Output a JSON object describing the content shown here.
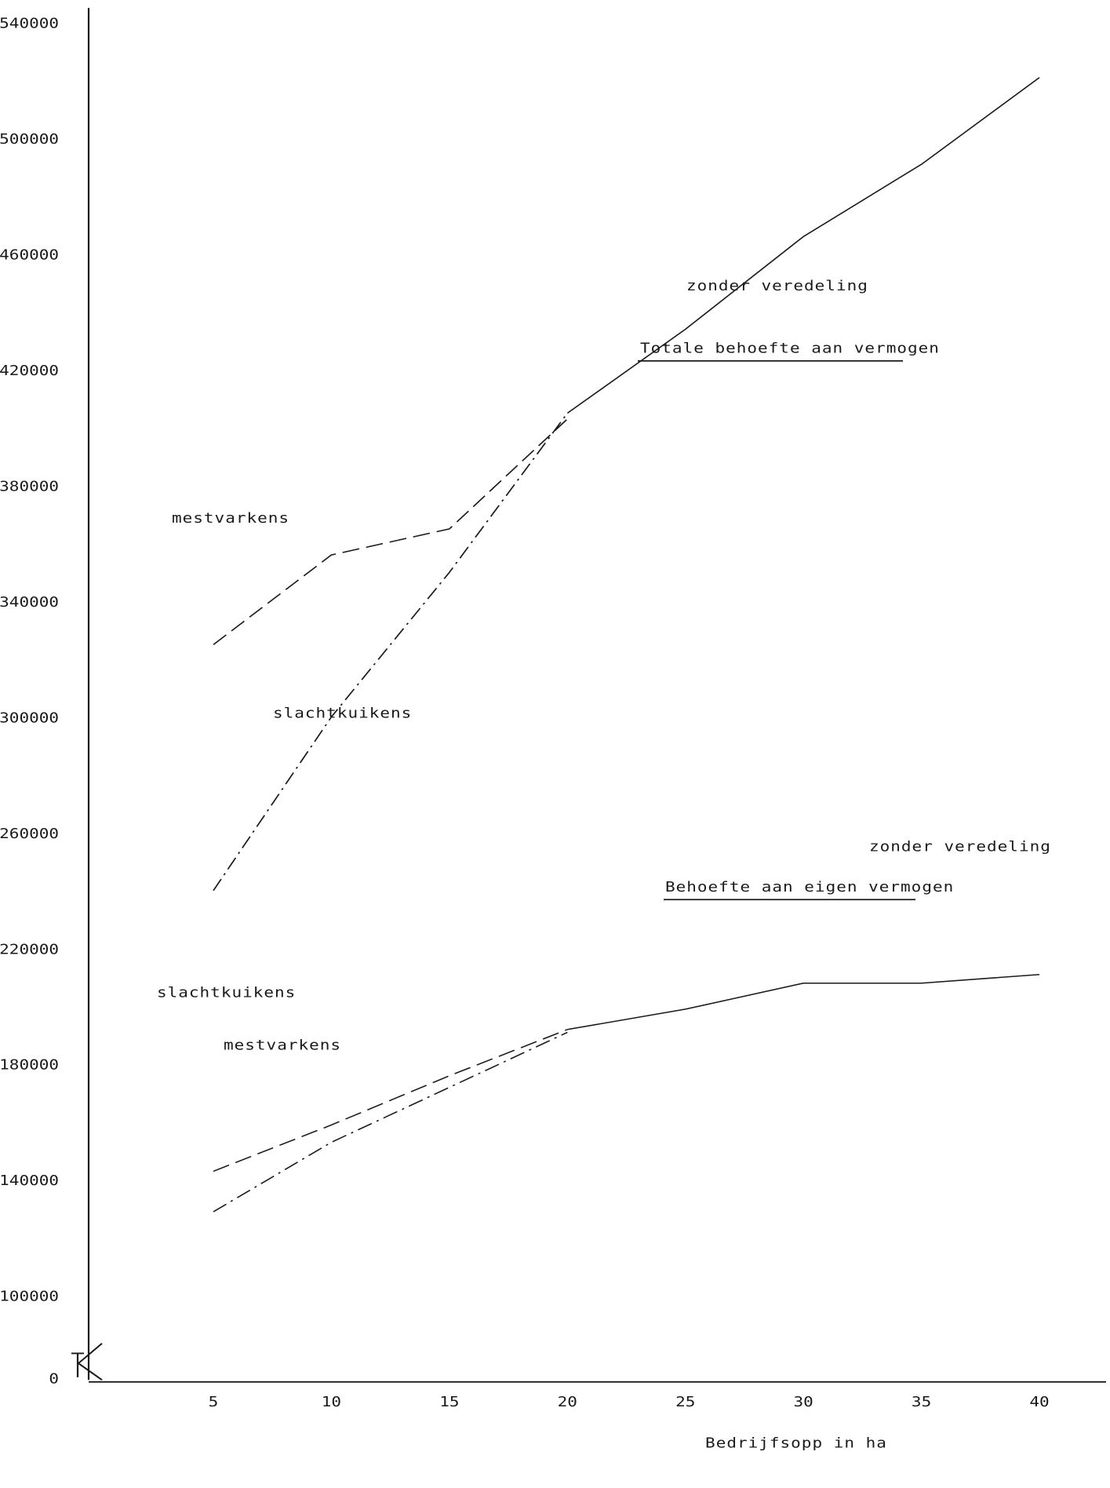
{
  "chart_data": {
    "type": "line",
    "title": "",
    "xlabel": "Bedrijfsopp in ha",
    "ylabel": "",
    "x_ticks": [
      "5",
      "10",
      "15",
      "20",
      "25",
      "30",
      "35",
      "40"
    ],
    "y_ticks": [
      "0",
      "100000",
      "140000",
      "180000",
      "220000",
      "260000",
      "300000",
      "340000",
      "380000",
      "420000",
      "460000",
      "500000",
      "540000"
    ],
    "xlim": [
      0,
      42
    ],
    "ylim": [
      100000,
      545000
    ],
    "y_axis_break": "between 0 and 100000",
    "grid": false,
    "legend": "none",
    "series": [
      {
        "group": "Totale behoefte aan vermogen",
        "name": "zonder veredeling",
        "style": "solid",
        "x": [
          20,
          25,
          30,
          35,
          40
        ],
        "y": [
          405000,
          434000,
          466000,
          491000,
          521000
        ]
      },
      {
        "group": "Totale behoefte aan vermogen",
        "name": "mestvarkens",
        "style": "dashed",
        "x": [
          5,
          10,
          15,
          20
        ],
        "y": [
          325000,
          356000,
          365000,
          403000
        ]
      },
      {
        "group": "Totale behoefte aan vermogen",
        "name": "slachtkuikens",
        "style": "dashdot",
        "x": [
          5,
          10,
          15,
          20
        ],
        "y": [
          240000,
          300000,
          350000,
          405000
        ]
      },
      {
        "group": "Behoefte aan eigen vermogen",
        "name": "zonder veredeling",
        "style": "solid",
        "x": [
          20,
          25,
          30,
          35,
          40
        ],
        "y": [
          192000,
          199000,
          208000,
          208000,
          211000
        ]
      },
      {
        "group": "Behoefte aan eigen vermogen",
        "name": "slachtkuikens",
        "style": "dashed",
        "x": [
          5,
          10,
          15,
          20
        ],
        "y": [
          143000,
          159000,
          176000,
          192000
        ]
      },
      {
        "group": "Behoefte aan eigen vermogen",
        "name": "mestvarkens",
        "style": "dashdot",
        "x": [
          5,
          10,
          15,
          20
        ],
        "y": [
          129000,
          153000,
          172000,
          191000
        ]
      }
    ],
    "annotations": [
      {
        "text": "Totale behoefte aan vermogen",
        "underlined": true
      },
      {
        "text": "Behoefte aan eigen vermogen",
        "underlined": true
      },
      {
        "text": "zonder veredeling"
      },
      {
        "text": "zonder veredeling"
      },
      {
        "text": "mestvarkens"
      },
      {
        "text": "slachtkuikens"
      },
      {
        "text": "slachtkuikens"
      },
      {
        "text": "mestvarkens"
      }
    ]
  }
}
